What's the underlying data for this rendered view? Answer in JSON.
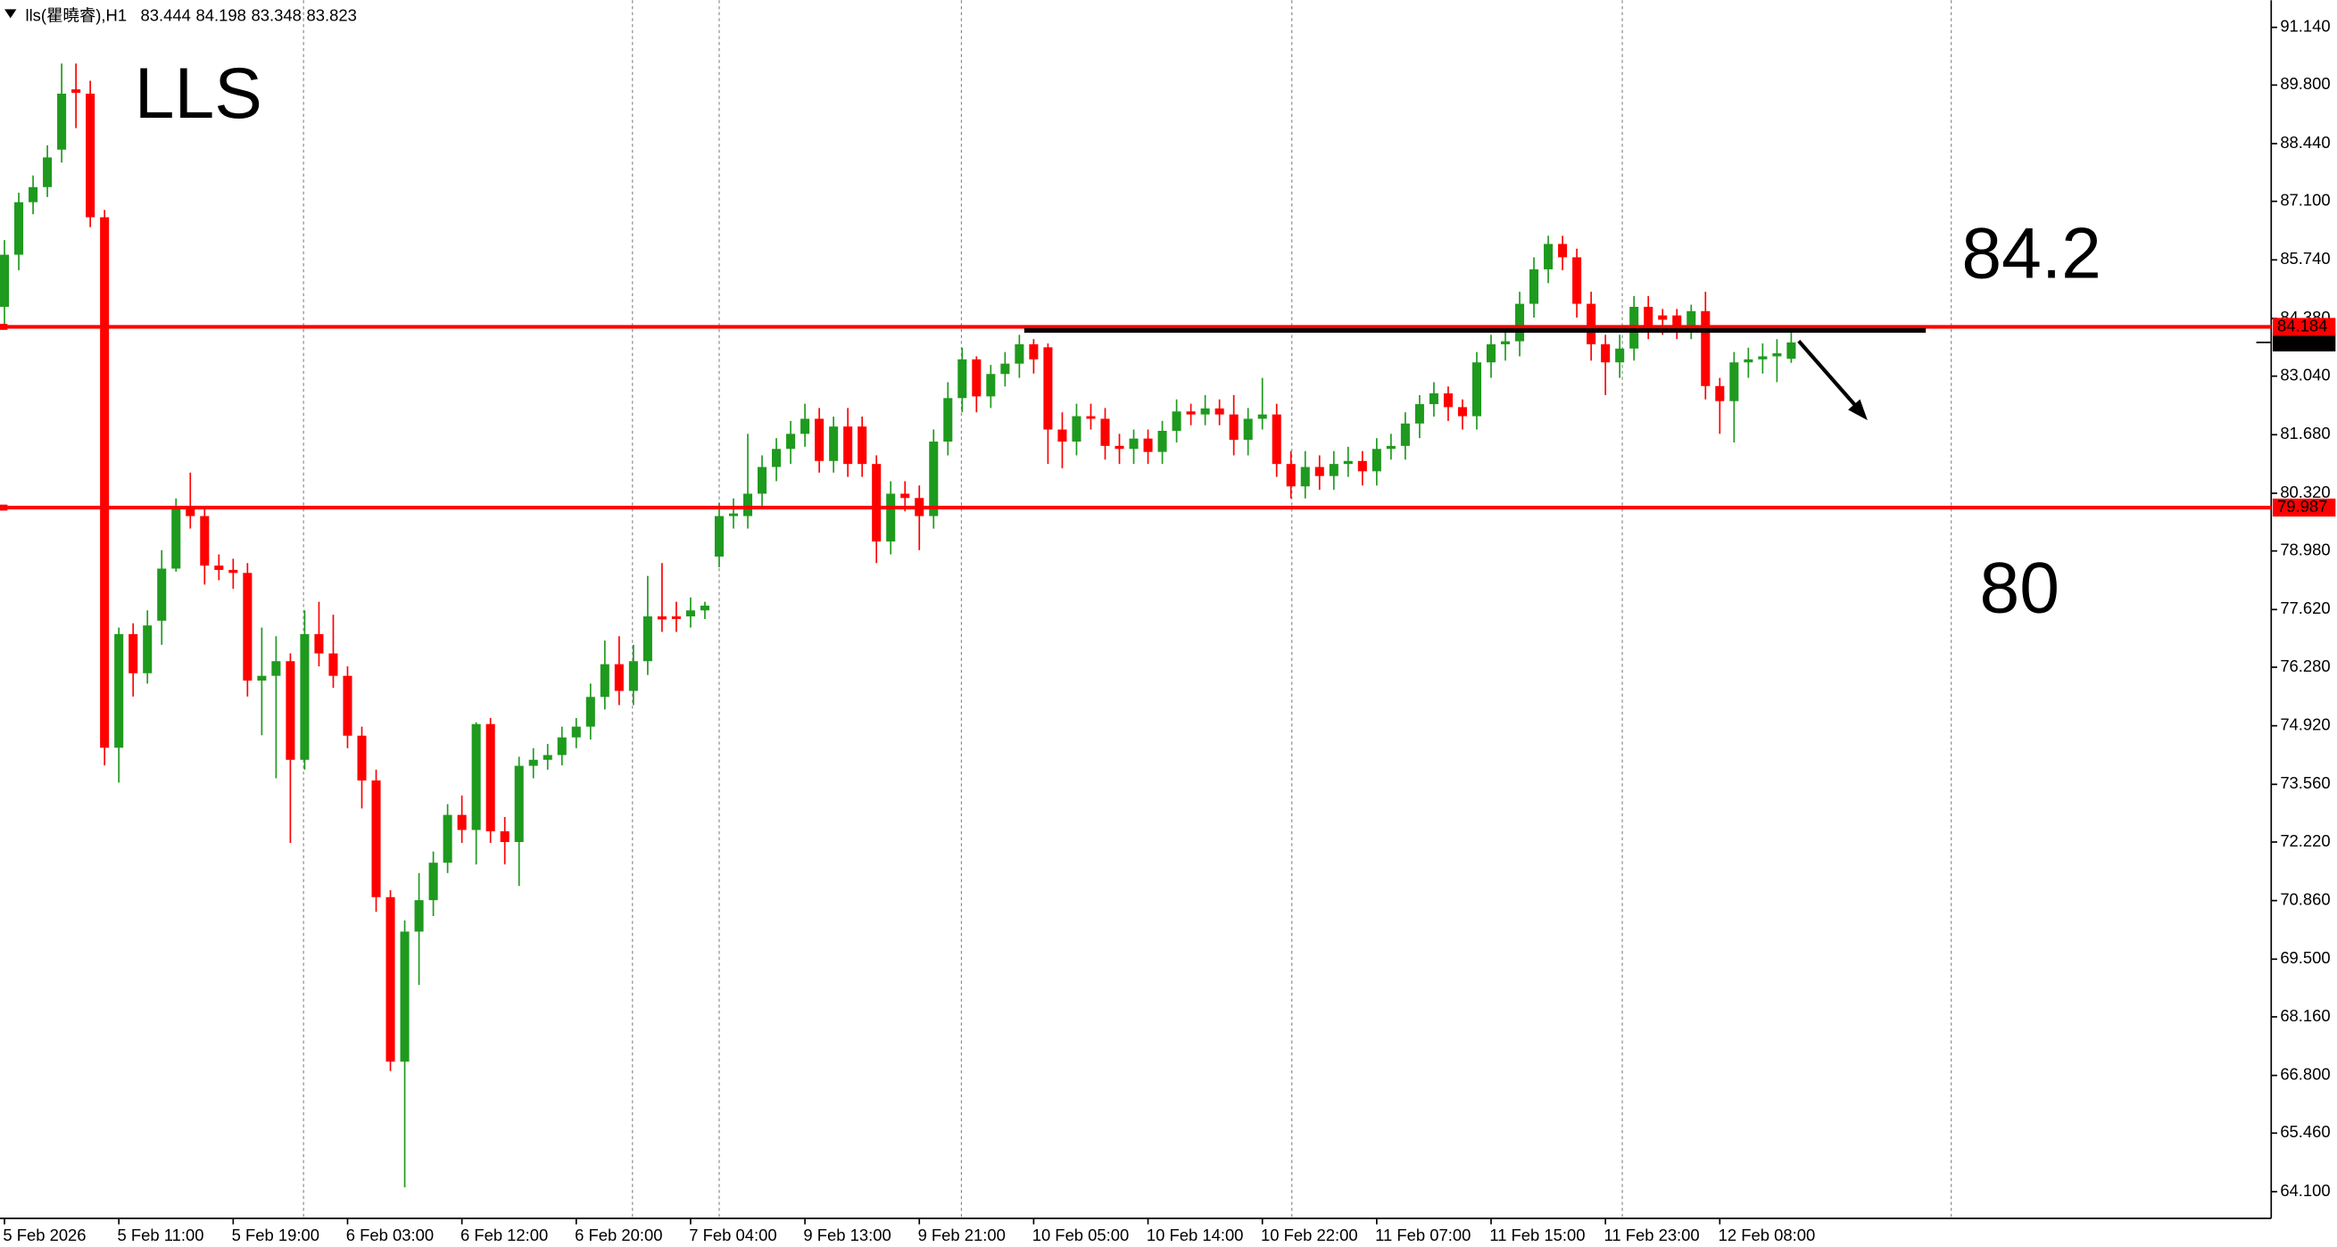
{
  "chart_data": {
    "type": "candlestick",
    "title": "lls(瞿曉睿),H1",
    "categories": [
      "5 Feb 2026",
      null,
      null,
      null,
      null,
      null,
      null,
      null,
      "5 Feb 11:00",
      null,
      null,
      null,
      null,
      null,
      null,
      null,
      "5 Feb 19:00",
      null,
      null,
      null,
      null,
      null,
      null,
      null,
      "6 Feb 03:00",
      null,
      null,
      null,
      null,
      null,
      null,
      null,
      "6 Feb 12:00",
      null,
      null,
      null,
      null,
      null,
      null,
      null,
      "6 Feb 20:00",
      null,
      null,
      null,
      null,
      null,
      null,
      null,
      "7 Feb 04:00",
      null,
      null,
      null,
      null,
      null,
      null,
      null,
      "9 Feb 13:00",
      null,
      null,
      null,
      null,
      null,
      null,
      null,
      "9 Feb 21:00",
      null,
      null,
      null,
      null,
      null,
      null,
      null,
      "10 Feb 05:00",
      null,
      null,
      null,
      null,
      null,
      null,
      null,
      "10 Feb 14:00",
      null,
      null,
      null,
      null,
      null,
      null,
      null,
      "10 Feb 22:00",
      null,
      null,
      null,
      null,
      null,
      null,
      null,
      "11 Feb 07:00",
      null,
      null,
      null,
      null,
      null,
      null,
      null,
      "11 Feb 15:00",
      null,
      null,
      null,
      null,
      null,
      null,
      null,
      "11 Feb 23:00",
      null,
      null,
      null,
      null,
      null,
      null,
      null,
      "12 Feb 08:00",
      null,
      null,
      null,
      null,
      null
    ],
    "series": [
      {
        "name": "lls",
        "up_color": "#1e9a1e",
        "down_color": "#ff0000",
        "open": [
          84.65,
          85.86,
          87.08,
          87.43,
          88.3,
          89.7,
          89.6,
          86.73,
          74.41,
          77.05,
          76.14,
          77.36,
          78.57,
          79.96,
          79.79,
          78.64,
          78.54,
          78.47,
          75.97,
          76.08,
          76.42,
          74.13,
          77.05,
          76.6,
          76.08,
          74.69,
          73.65,
          70.94,
          67.12,
          70.14,
          70.87,
          71.74,
          72.85,
          72.5,
          74.96,
          72.47,
          72.22,
          73.99,
          74.13,
          74.24,
          74.65,
          74.9,
          75.59,
          76.35,
          75.73,
          76.42,
          77.46,
          77.46,
          77.46,
          77.6,
          78.85,
          79.79,
          79.79,
          80.31,
          80.93,
          81.35,
          81.7,
          82.05,
          81.07,
          81.87,
          81.87,
          81.0,
          79.2,
          80.31,
          80.21,
          79.79,
          81.52,
          82.53,
          83.43,
          82.57,
          83.09,
          83.33,
          83.78,
          83.71,
          81.8,
          81.52,
          82.11,
          82.05,
          81.42,
          81.35,
          81.59,
          81.28,
          81.77,
          82.22,
          82.15,
          82.29,
          82.15,
          81.56,
          82.05,
          82.15,
          81.0,
          80.48,
          80.93,
          80.72,
          81.0,
          81.07,
          80.83,
          81.35,
          81.42,
          81.94,
          82.39,
          82.64,
          82.32,
          82.11,
          83.36,
          83.78,
          83.85,
          84.72,
          85.52,
          86.11,
          85.8,
          84.72,
          83.78,
          83.36,
          83.68,
          84.65,
          84.45,
          84.45,
          84.2,
          84.55,
          82.81,
          82.46,
          83.36,
          83.43,
          83.5,
          83.444
        ],
        "high": [
          86.2,
          87.3,
          87.7,
          88.4,
          90.3,
          90.3,
          89.9,
          86.9,
          77.2,
          77.3,
          77.6,
          79.0,
          80.2,
          80.8,
          80.0,
          78.9,
          78.8,
          78.7,
          77.2,
          77.0,
          76.6,
          77.6,
          77.8,
          77.5,
          76.3,
          74.9,
          73.9,
          71.1,
          70.4,
          71.5,
          72.0,
          73.1,
          73.3,
          75.0,
          75.1,
          72.8,
          74.2,
          74.4,
          74.5,
          74.9,
          75.1,
          75.9,
          76.9,
          77.0,
          76.8,
          78.4,
          78.7,
          77.8,
          77.9,
          77.8,
          80.1,
          80.2,
          81.7,
          81.2,
          81.6,
          82.0,
          82.4,
          82.3,
          82.1,
          82.3,
          82.1,
          81.2,
          80.6,
          80.6,
          80.5,
          81.8,
          82.9,
          83.7,
          83.5,
          83.3,
          83.6,
          84.0,
          83.9,
          83.8,
          82.2,
          82.4,
          82.4,
          82.3,
          81.7,
          81.8,
          81.8,
          82.0,
          82.5,
          82.4,
          82.6,
          82.5,
          82.6,
          82.3,
          83.0,
          82.4,
          81.3,
          81.3,
          81.2,
          81.3,
          81.4,
          81.3,
          81.6,
          81.7,
          82.2,
          82.6,
          82.9,
          82.8,
          82.5,
          83.6,
          84.0,
          84.2,
          85.0,
          85.8,
          86.3,
          86.3,
          86.0,
          85.0,
          84.0,
          84.0,
          84.9,
          84.9,
          84.6,
          84.6,
          84.7,
          85.0,
          83.0,
          83.6,
          83.7,
          83.8,
          83.9,
          84.198
        ],
        "low": [
          84.2,
          85.5,
          86.8,
          87.2,
          88.0,
          88.8,
          86.5,
          74.0,
          73.6,
          75.6,
          75.9,
          76.8,
          78.5,
          79.5,
          78.2,
          78.3,
          78.1,
          75.6,
          74.7,
          73.7,
          72.2,
          73.9,
          76.3,
          75.8,
          74.4,
          73.0,
          70.6,
          66.9,
          64.2,
          68.9,
          70.5,
          71.5,
          72.2,
          71.7,
          72.2,
          71.7,
          71.2,
          73.7,
          73.9,
          74.0,
          74.4,
          74.6,
          75.3,
          75.4,
          75.4,
          76.1,
          77.1,
          77.1,
          77.2,
          77.4,
          78.6,
          79.5,
          79.5,
          80.0,
          80.6,
          81.0,
          81.4,
          80.8,
          80.8,
          80.7,
          80.7,
          78.7,
          78.9,
          79.9,
          79.0,
          79.5,
          81.2,
          82.2,
          82.2,
          82.3,
          82.8,
          83.0,
          83.1,
          81.0,
          80.9,
          81.2,
          81.8,
          81.1,
          81.0,
          81.0,
          81.0,
          81.0,
          81.5,
          81.9,
          81.9,
          81.9,
          81.2,
          81.2,
          81.8,
          80.7,
          80.2,
          80.2,
          80.4,
          80.4,
          80.7,
          80.5,
          80.5,
          81.1,
          81.1,
          81.6,
          82.1,
          82.0,
          81.8,
          81.8,
          83.0,
          83.4,
          83.5,
          84.4,
          85.2,
          85.5,
          84.4,
          83.4,
          82.6,
          83.0,
          83.4,
          83.9,
          84.0,
          83.9,
          83.9,
          82.5,
          81.7,
          81.5,
          83.0,
          83.1,
          82.9,
          83.348
        ],
        "close": [
          85.86,
          87.08,
          87.43,
          88.12,
          89.6,
          89.62,
          86.73,
          74.41,
          77.05,
          76.14,
          77.25,
          78.57,
          79.96,
          79.79,
          78.64,
          78.54,
          78.47,
          75.97,
          76.08,
          76.42,
          74.13,
          77.05,
          76.6,
          76.08,
          74.69,
          73.65,
          70.94,
          67.12,
          70.14,
          70.87,
          71.74,
          72.85,
          72.5,
          74.96,
          72.47,
          72.22,
          73.99,
          74.13,
          74.24,
          74.65,
          74.9,
          75.59,
          76.35,
          75.73,
          76.42,
          77.46,
          77.39,
          77.4,
          77.6,
          77.71,
          79.79,
          79.85,
          80.31,
          80.93,
          81.35,
          81.7,
          82.05,
          81.07,
          81.87,
          81.0,
          81.0,
          79.2,
          80.31,
          80.21,
          79.79,
          81.52,
          82.53,
          83.43,
          82.57,
          83.09,
          83.33,
          83.78,
          83.43,
          81.8,
          81.52,
          82.11,
          82.05,
          81.42,
          81.35,
          81.59,
          81.28,
          81.77,
          82.22,
          82.15,
          82.29,
          82.15,
          81.56,
          82.05,
          82.15,
          81.0,
          80.48,
          80.93,
          80.72,
          81.0,
          81.07,
          80.83,
          81.35,
          81.42,
          81.94,
          82.39,
          82.64,
          82.32,
          82.11,
          83.36,
          83.78,
          83.85,
          84.72,
          85.52,
          86.11,
          85.8,
          84.72,
          83.78,
          83.36,
          83.68,
          84.65,
          84.2,
          84.35,
          84.2,
          84.55,
          82.81,
          82.46,
          83.36,
          83.43,
          83.5,
          83.57,
          83.823
        ]
      }
    ],
    "ylim": [
      63.48,
      91.77
    ],
    "yticks": [
      {
        "value": 91.14,
        "label": "91.140"
      },
      {
        "value": 89.8,
        "label": "89.800"
      },
      {
        "value": 88.44,
        "label": "88.440"
      },
      {
        "value": 87.1,
        "label": "87.100"
      },
      {
        "value": 85.74,
        "label": "85.740"
      },
      {
        "value": 84.38,
        "label": "84.380"
      },
      {
        "value": 83.04,
        "label": "83.040"
      },
      {
        "value": 81.68,
        "label": "81.680"
      },
      {
        "value": 80.32,
        "label": "80.320"
      },
      {
        "value": 78.98,
        "label": "78.980"
      },
      {
        "value": 77.62,
        "label": "77.620"
      },
      {
        "value": 76.28,
        "label": "76.280"
      },
      {
        "value": 74.92,
        "label": "74.920"
      },
      {
        "value": 73.56,
        "label": "73.560"
      },
      {
        "value": 72.22,
        "label": "72.220"
      },
      {
        "value": 70.86,
        "label": "70.860"
      },
      {
        "value": 69.5,
        "label": "69.500"
      },
      {
        "value": 68.16,
        "label": "68.160"
      },
      {
        "value": 66.8,
        "label": "66.800"
      },
      {
        "value": 65.46,
        "label": "65.460"
      },
      {
        "value": 64.1,
        "label": "64.100"
      }
    ],
    "hlines": [
      {
        "value": 84.184,
        "color": "#ff0000"
      },
      {
        "value": 79.987,
        "color": "#ff0000"
      }
    ],
    "trendline": {
      "value": 84.1,
      "color": "#000000"
    },
    "current_price": 83.823,
    "annotations": [
      {
        "text": "LLS"
      },
      {
        "text": "84.2"
      },
      {
        "text": "80"
      }
    ]
  }
}
